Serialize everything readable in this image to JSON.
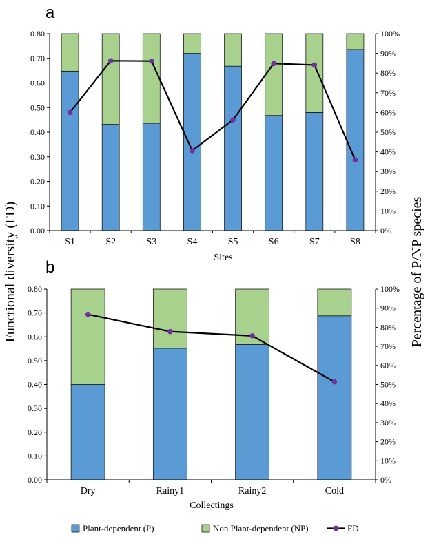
{
  "colors": {
    "p": "#5b9bd5",
    "np": "#a9d18e",
    "bar_edge": "#1a1a1a",
    "fd_line": "#000000",
    "fd_marker": "#7030a0",
    "axis": "#000000"
  },
  "shared": {
    "ylabel": "Functional diversity (FD)",
    "y2label": "Percentage of P/NP species"
  },
  "legend": {
    "p": "Plant-dependent (P)",
    "np": "Non Plant-dependent (NP)",
    "fd": "FD"
  },
  "chart_data": [
    {
      "panel": "a",
      "type": "bar",
      "stacked": true,
      "xlabel": "Sites",
      "categories": [
        "S1",
        "S2",
        "S3",
        "S4",
        "S5",
        "S6",
        "S7",
        "S8"
      ],
      "series": [
        {
          "name": "Plant-dependent (P)",
          "key": "p",
          "axis": "percent",
          "values": [
            81,
            54,
            54.5,
            90,
            83.5,
            58.5,
            60,
            92
          ]
        },
        {
          "name": "Non Plant-dependent (NP)",
          "key": "np",
          "axis": "percent",
          "values": [
            19,
            46,
            45.5,
            10,
            16.5,
            41.5,
            40,
            8
          ]
        },
        {
          "name": "FD",
          "key": "fd",
          "axis": "fd",
          "type": "line",
          "values": [
            0.48,
            0.69,
            0.689,
            0.325,
            0.45,
            0.679,
            0.673,
            0.287
          ]
        }
      ],
      "ylim": [
        0,
        0.8
      ],
      "yticks": [
        "0.00",
        "0.10",
        "0.20",
        "0.30",
        "0.40",
        "0.50",
        "0.60",
        "0.70",
        "0.80"
      ],
      "y2lim": [
        0,
        100
      ],
      "y2ticks": [
        "0%",
        "10%",
        "20%",
        "30%",
        "40%",
        "50%",
        "60%",
        "70%",
        "80%",
        "90%",
        "100%"
      ]
    },
    {
      "panel": "b",
      "type": "bar",
      "stacked": true,
      "xlabel": "Collectings",
      "categories": [
        "Dry",
        "Rainy1",
        "Rainy2",
        "Cold"
      ],
      "series": [
        {
          "name": "Plant-dependent (P)",
          "key": "p",
          "axis": "percent",
          "values": [
            50,
            69,
            71,
            86
          ]
        },
        {
          "name": "Non Plant-dependent (NP)",
          "key": "np",
          "axis": "percent",
          "values": [
            50,
            31,
            29,
            14
          ]
        },
        {
          "name": "FD",
          "key": "fd",
          "axis": "fd",
          "type": "line",
          "values": [
            0.694,
            0.622,
            0.604,
            0.411
          ]
        }
      ],
      "ylim": [
        0,
        0.8
      ],
      "yticks": [
        "0.00",
        "0.10",
        "0.20",
        "0.30",
        "0.40",
        "0.50",
        "0.60",
        "0.70",
        "0.80"
      ],
      "y2lim": [
        0,
        100
      ],
      "y2ticks": [
        "0%",
        "10%",
        "20%",
        "30%",
        "40%",
        "50%",
        "60%",
        "70%",
        "80%",
        "90%",
        "100%"
      ]
    }
  ]
}
